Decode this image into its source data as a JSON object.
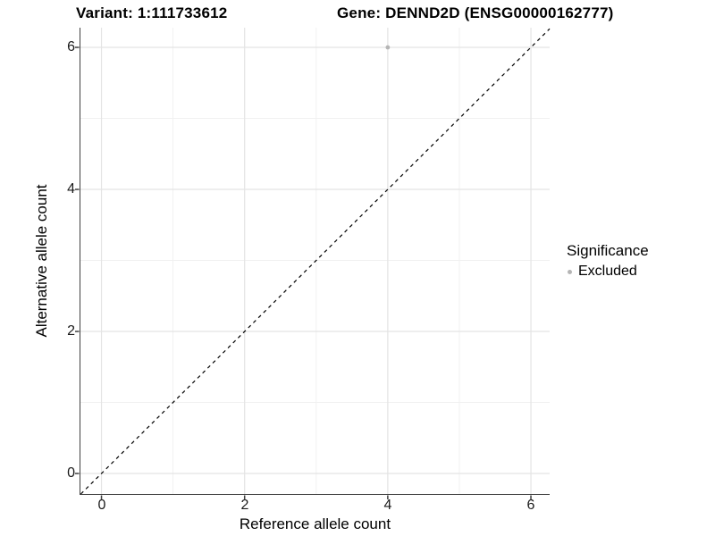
{
  "titles": {
    "variant": "Variant: 1:111733612",
    "gene": "Gene: DENND2D (ENSG00000162777)"
  },
  "axes": {
    "x_label": "Reference allele count",
    "y_label": "Alternative allele count",
    "x_ticks": [
      "0",
      "2",
      "4",
      "6"
    ],
    "y_ticks": [
      "0",
      "2",
      "4",
      "6"
    ]
  },
  "legend": {
    "title": "Significance",
    "items": [
      {
        "label": "Excluded",
        "color": "#b5b5b5"
      }
    ]
  },
  "colors": {
    "axis_line": "#404040",
    "major_grid": "#e4e4e4",
    "minor_grid": "#f1f1f1",
    "point": "#b5b5b5",
    "identity_line": "#000000"
  },
  "chart_data": {
    "type": "scatter",
    "title": "Variant: 1:111733612 / Gene: DENND2D (ENSG00000162777)",
    "xlabel": "Reference allele count",
    "ylabel": "Alternative allele count",
    "xlim": [
      -0.294,
      6.262
    ],
    "ylim": [
      -0.289,
      6.277
    ],
    "x_breaks": [
      0,
      2,
      4,
      6
    ],
    "y_breaks": [
      0,
      2,
      4,
      6
    ],
    "x_minor_breaks": [
      1,
      3,
      5
    ],
    "y_minor_breaks": [
      1,
      3,
      5
    ],
    "grid": true,
    "legend_position": "right",
    "series": [
      {
        "name": "Excluded",
        "color": "#b5b5b5",
        "points": [
          {
            "x": 4,
            "y": 6
          }
        ]
      }
    ],
    "reference_line": {
      "equation": "y = x",
      "style": "dashed",
      "color": "#000000"
    }
  }
}
